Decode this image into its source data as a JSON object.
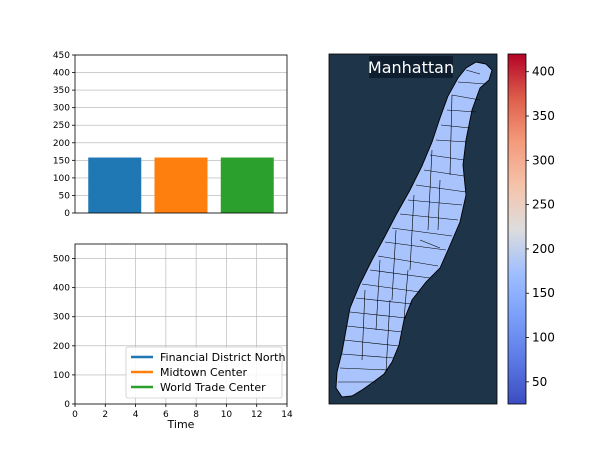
{
  "chart_data": [
    {
      "type": "bar",
      "categories": [
        "Financial District North",
        "Midtown Center",
        "World Trade Center"
      ],
      "values": [
        158,
        158,
        158
      ],
      "colors": [
        "#1f77b4",
        "#ff7f0e",
        "#2ca02c"
      ],
      "ylim": [
        0,
        450
      ],
      "yticks": [
        0,
        50,
        100,
        150,
        200,
        250,
        300,
        350,
        400,
        450
      ],
      "grid": "y"
    },
    {
      "type": "line",
      "xlabel": "Time",
      "xlim": [
        0,
        14
      ],
      "ylim": [
        0,
        550
      ],
      "xticks": [
        0,
        2,
        4,
        6,
        8,
        10,
        12,
        14
      ],
      "yticks": [
        0,
        100,
        200,
        300,
        400,
        500
      ],
      "grid": "both",
      "legend_position": "lower-right",
      "series": [
        {
          "name": "Financial District North",
          "color": "#1f77b4",
          "x": [],
          "y": []
        },
        {
          "name": "Midtown Center",
          "color": "#ff7f0e",
          "x": [],
          "y": []
        },
        {
          "name": "World Trade Center",
          "color": "#2ca02c",
          "x": [],
          "y": []
        }
      ]
    },
    {
      "type": "heatmap",
      "title": "Manhattan",
      "colormap": "coolwarm",
      "colorbar_ticks": [
        50,
        100,
        150,
        200,
        250,
        300,
        350,
        400
      ],
      "colorbar_range": [
        25,
        420
      ],
      "region_color": "#a9c4fc",
      "background_color": "#1e3449"
    }
  ]
}
